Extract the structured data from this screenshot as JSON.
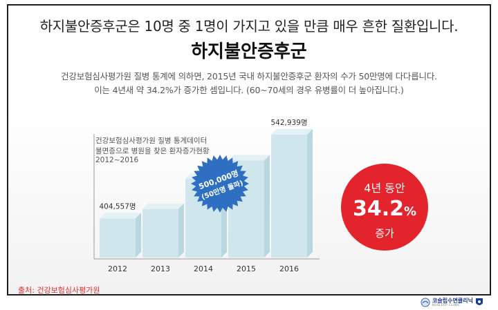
{
  "headline": "하지불안증후군은 10명 중 1명이 가지고 있을 만큼 매우 흔한 질환입니다.",
  "title": "하지불안증후군",
  "description": [
    "건강보험심사평가원 질병 통계에 의하면, 2015년 국내 하지불안증후군 환자의 수가 50만명에 다다릅니다.",
    "이는 4년새 약 34.2%가 증가한 셈입니다. (60~70세의 경우 유병률이 더 높아집니다.)"
  ],
  "chart_note": [
    "건강보험심사평가원 질병 통계데이터",
    "불면증으로 병원을 찾은 환자증가현황",
    "2012~2016"
  ],
  "source": "출처: 건강보험심사평가원",
  "chart_data": {
    "type": "bar",
    "title": "",
    "categories": [
      "2012",
      "2013",
      "2014",
      "2015",
      "2016"
    ],
    "values": [
      404557,
      420000,
      470000,
      500000,
      542939
    ],
    "data_labels": [
      {
        "category": "2012",
        "text": "404,557명"
      },
      {
        "category": "2016",
        "text": "542,939명"
      }
    ],
    "annotation": {
      "category": "2015",
      "line1": "500,000명",
      "line2": "(50만명 돌파)"
    },
    "bar_color": "#cfe6ec",
    "ylim": [
      340000,
      545000
    ],
    "grid": false
  },
  "callout": {
    "top": "4년 동안",
    "value": "34.2",
    "unit": "%",
    "bottom": "증가",
    "color": "#e4242c"
  },
  "logo": {
    "name": "코슬립수면클리닉",
    "sub": "KOSLEEP CLINIC"
  }
}
